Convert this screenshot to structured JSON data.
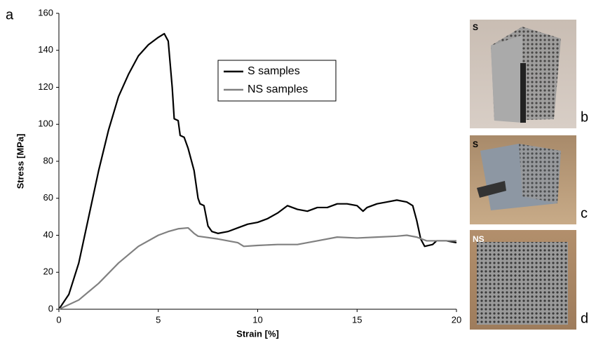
{
  "chart_data": {
    "type": "line",
    "panel_label": "a",
    "xlabel": "Strain [%]",
    "ylabel": "Stress [MPa]",
    "xlim": [
      0,
      20
    ],
    "xticks": [
      0,
      5,
      10,
      15,
      20
    ],
    "ylim": [
      0,
      160
    ],
    "yticks": [
      0,
      20,
      40,
      60,
      80,
      100,
      120,
      140,
      160
    ],
    "grid": false,
    "legend": "top-center",
    "series": [
      {
        "name": "S samples",
        "color": "#000000",
        "x": [
          0,
          0.5,
          1,
          1.5,
          2,
          2.5,
          3,
          3.5,
          4,
          4.5,
          5,
          5.3,
          5.5,
          5.7,
          5.8,
          6,
          6.1,
          6.3,
          6.5,
          6.8,
          7,
          7.1,
          7.3,
          7.5,
          7.7,
          8,
          8.5,
          9,
          9.5,
          10,
          10.5,
          11,
          11.5,
          12,
          12.5,
          13,
          13.5,
          14,
          14.5,
          15,
          15.3,
          15.5,
          16,
          16.5,
          17,
          17.5,
          17.8,
          18,
          18.2,
          18.4,
          18.8,
          19,
          19.5,
          20
        ],
        "values": [
          0,
          8,
          25,
          50,
          75,
          97,
          115,
          127,
          137,
          143,
          147,
          149,
          145,
          120,
          103,
          102,
          94,
          93,
          87,
          75,
          60,
          57,
          56,
          45,
          42,
          41,
          42,
          44,
          46,
          47,
          49,
          52,
          56,
          54,
          53,
          55,
          55,
          57,
          57,
          56,
          53,
          55,
          57,
          58,
          59,
          58,
          56,
          48,
          38,
          34,
          35,
          37,
          37,
          36
        ]
      },
      {
        "name": "NS samples",
        "color": "#808080",
        "x": [
          0,
          1,
          2,
          3,
          4,
          5,
          5.5,
          6,
          6.5,
          6.8,
          7,
          8,
          9,
          9.3,
          10,
          11,
          12,
          13,
          14,
          15,
          16,
          17,
          17.5,
          18,
          18.5,
          19,
          20
        ],
        "values": [
          0,
          5,
          14,
          25,
          34,
          40,
          42,
          43.5,
          44,
          41,
          39.5,
          38,
          36,
          34,
          34.5,
          35,
          35,
          37,
          39,
          38.5,
          39,
          39.5,
          40,
          39,
          37,
          37,
          37
        ]
      }
    ]
  },
  "photos": [
    {
      "panel": "b",
      "sample": "S"
    },
    {
      "panel": "c",
      "sample": "S"
    },
    {
      "panel": "d",
      "sample": "NS"
    }
  ]
}
